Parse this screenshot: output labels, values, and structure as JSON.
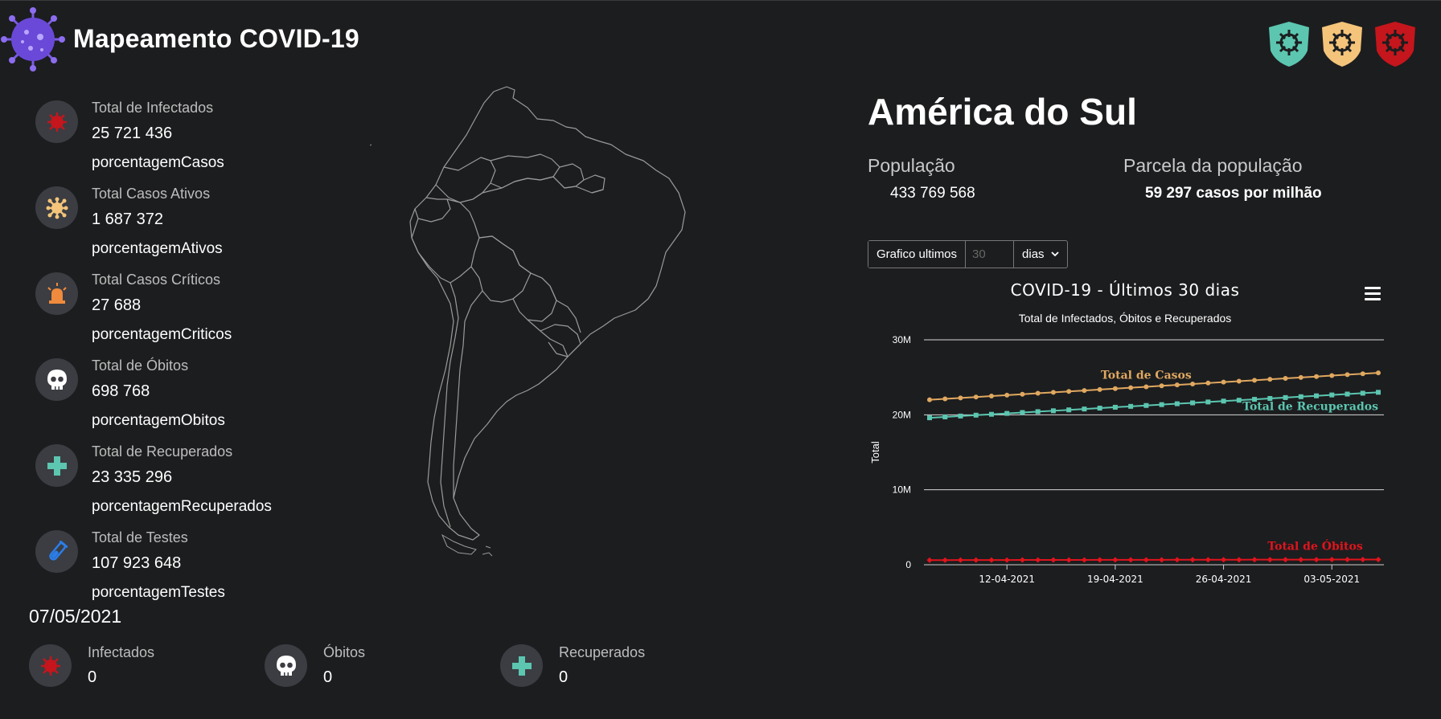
{
  "app": {
    "title": "Mapeamento COVID-19"
  },
  "badges": [
    {
      "icon": "virus-shield-green-icon",
      "color": "#5cc6b0"
    },
    {
      "icon": "virus-shield-yellow-icon",
      "color": "#f4c47a"
    },
    {
      "icon": "virus-shield-red-icon",
      "color": "#c4161c"
    }
  ],
  "stats": [
    {
      "label": "Total de Infectados",
      "value": "25 721 436",
      "pct": "porcentagemCasos",
      "icon": "virus-icon",
      "color": "#c4161c"
    },
    {
      "label": "Total Casos Ativos",
      "value": "1 687 372",
      "pct": "porcentagemAtivos",
      "icon": "virus-active-icon",
      "color": "#f4c47a"
    },
    {
      "label": "Total Casos Críticos",
      "value": "27 688",
      "pct": "porcentagemCriticos",
      "icon": "siren-icon",
      "color": "#f08a3c"
    },
    {
      "label": "Total de Óbitos",
      "value": "698 768",
      "pct": "porcentagemObitos",
      "icon": "skull-icon",
      "color": "#ffffff"
    },
    {
      "label": "Total de Recuperados",
      "value": "23 335 296",
      "pct": "porcentagemRecuperados",
      "icon": "plus-icon",
      "color": "#5cc6b0"
    },
    {
      "label": "Total de Testes",
      "value": "107 923 648",
      "pct": "porcentagemTestes",
      "icon": "test-tube-icon",
      "color": "#2b7de9"
    }
  ],
  "date": "07/05/2021",
  "daily": [
    {
      "label": "Infectados",
      "value": "0",
      "icon": "virus-icon",
      "color": "#c4161c"
    },
    {
      "label": "Óbitos",
      "value": "0",
      "icon": "skull-icon",
      "color": "#ffffff"
    },
    {
      "label": "Recuperados",
      "value": "0",
      "icon": "plus-icon",
      "color": "#5cc6b0"
    }
  ],
  "region": {
    "name": "América do Sul",
    "population_label": "População",
    "population_value": "433 769 568",
    "share_label": "Parcela da população",
    "share_value": "59 297 casos por milhão"
  },
  "control": {
    "prefix": "Grafico ultimos",
    "input_placeholder": "30",
    "unit": "dias"
  },
  "chart_data": {
    "type": "line",
    "title": "COVID-19 - Últimos 30 dias",
    "subtitle": "Total de Infectados, Óbitos e Recuperados",
    "ylabel": "Total",
    "ylim": [
      0,
      30000000
    ],
    "yticks": [
      0,
      10000000,
      20000000,
      30000000
    ],
    "ytick_labels": [
      "0",
      "10M",
      "20M",
      "30M"
    ],
    "xtick_labels": [
      "12-04-2021",
      "19-04-2021",
      "26-04-2021",
      "03-05-2021"
    ],
    "xtick_index": [
      5,
      12,
      19,
      26
    ],
    "num_points": 30,
    "grid": true,
    "series": [
      {
        "name": "Total de Casos",
        "color": "#e0a860",
        "marker": "circle",
        "start": 22000000,
        "end": 25600000
      },
      {
        "name": "Total de Recuperados",
        "color": "#5cc6b0",
        "marker": "square",
        "start": 19600000,
        "end": 23000000
      },
      {
        "name": "Total de Óbitos",
        "color": "#e0141c",
        "marker": "diamond",
        "start": 620000,
        "end": 700000
      }
    ]
  }
}
